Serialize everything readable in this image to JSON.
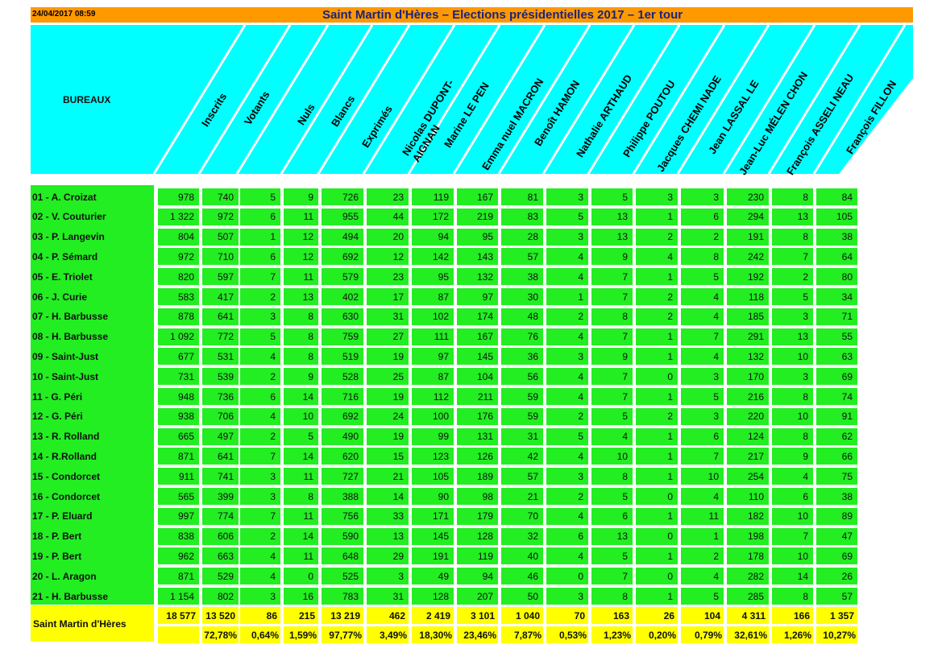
{
  "header": {
    "timestamp": "24/04/2017 08:59",
    "title": "Saint Martin d'Hères – Elections présidentielles 2017 – 1er tour",
    "bureaux_label": "BUREAUX"
  },
  "colors": {
    "orange": "#ff9900",
    "cyan": "#00ffff",
    "green": "#22ee22",
    "yellow": "#ffff00"
  },
  "columns": [
    "Inscrits",
    "Votants",
    "Nuls",
    "Blancs",
    "Exprimés",
    "Nicolas DUPONT-\nAIGNAN",
    "Marine LE PEN",
    "Emma nuel MACRON",
    "Benoît HAMON",
    "Nathalie ARTHAUD",
    "Philippe POUTOU",
    "Jacques CHEMI NADE",
    "Jean LASSAL LE",
    "Jean-Luc MÉLEN CHON",
    "François ASSELI NEAU",
    "François FILLON"
  ],
  "rows": [
    {
      "name": "01 - A. Croizat",
      "values": [
        "978",
        "740",
        "5",
        "9",
        "726",
        "23",
        "119",
        "167",
        "81",
        "3",
        "5",
        "3",
        "3",
        "230",
        "8",
        "84"
      ]
    },
    {
      "name": "02 - V. Couturier",
      "values": [
        "1 322",
        "972",
        "6",
        "11",
        "955",
        "44",
        "172",
        "219",
        "83",
        "5",
        "13",
        "1",
        "6",
        "294",
        "13",
        "105"
      ]
    },
    {
      "name": "03 - P. Langevin",
      "values": [
        "804",
        "507",
        "1",
        "12",
        "494",
        "20",
        "94",
        "95",
        "28",
        "3",
        "13",
        "2",
        "2",
        "191",
        "8",
        "38"
      ]
    },
    {
      "name": "04 - P. Sémard",
      "values": [
        "972",
        "710",
        "6",
        "12",
        "692",
        "12",
        "142",
        "143",
        "57",
        "4",
        "9",
        "4",
        "8",
        "242",
        "7",
        "64"
      ]
    },
    {
      "name": "05 - E. Triolet",
      "values": [
        "820",
        "597",
        "7",
        "11",
        "579",
        "23",
        "95",
        "132",
        "38",
        "4",
        "7",
        "1",
        "5",
        "192",
        "2",
        "80"
      ]
    },
    {
      "name": "06 - J. Curie",
      "values": [
        "583",
        "417",
        "2",
        "13",
        "402",
        "17",
        "87",
        "97",
        "30",
        "1",
        "7",
        "2",
        "4",
        "118",
        "5",
        "34"
      ]
    },
    {
      "name": "07 - H. Barbusse",
      "values": [
        "878",
        "641",
        "3",
        "8",
        "630",
        "31",
        "102",
        "174",
        "48",
        "2",
        "8",
        "2",
        "4",
        "185",
        "3",
        "71"
      ]
    },
    {
      "name": "08 - H. Barbusse",
      "values": [
        "1 092",
        "772",
        "5",
        "8",
        "759",
        "27",
        "111",
        "167",
        "76",
        "4",
        "7",
        "1",
        "7",
        "291",
        "13",
        "55"
      ]
    },
    {
      "name": "09 - Saint-Just",
      "values": [
        "677",
        "531",
        "4",
        "8",
        "519",
        "19",
        "97",
        "145",
        "36",
        "3",
        "9",
        "1",
        "4",
        "132",
        "10",
        "63"
      ]
    },
    {
      "name": "10 - Saint-Just",
      "values": [
        "731",
        "539",
        "2",
        "9",
        "528",
        "25",
        "87",
        "104",
        "56",
        "4",
        "7",
        "0",
        "3",
        "170",
        "3",
        "69"
      ]
    },
    {
      "name": "11 - G. Péri",
      "values": [
        "948",
        "736",
        "6",
        "14",
        "716",
        "19",
        "112",
        "211",
        "59",
        "4",
        "7",
        "1",
        "5",
        "216",
        "8",
        "74"
      ]
    },
    {
      "name": "12 - G. Péri",
      "values": [
        "938",
        "706",
        "4",
        "10",
        "692",
        "24",
        "100",
        "176",
        "59",
        "2",
        "5",
        "2",
        "3",
        "220",
        "10",
        "91"
      ]
    },
    {
      "name": "13 - R. Rolland",
      "values": [
        "665",
        "497",
        "2",
        "5",
        "490",
        "19",
        "99",
        "131",
        "31",
        "5",
        "4",
        "1",
        "6",
        "124",
        "8",
        "62"
      ]
    },
    {
      "name": "14 - R.Rolland",
      "values": [
        "871",
        "641",
        "7",
        "14",
        "620",
        "15",
        "123",
        "126",
        "42",
        "4",
        "10",
        "1",
        "7",
        "217",
        "9",
        "66"
      ]
    },
    {
      "name": "15 - Condorcet",
      "values": [
        "911",
        "741",
        "3",
        "11",
        "727",
        "21",
        "105",
        "189",
        "57",
        "3",
        "8",
        "1",
        "10",
        "254",
        "4",
        "75"
      ]
    },
    {
      "name": "16 - Condorcet",
      "values": [
        "565",
        "399",
        "3",
        "8",
        "388",
        "14",
        "90",
        "98",
        "21",
        "2",
        "5",
        "0",
        "4",
        "110",
        "6",
        "38"
      ]
    },
    {
      "name": "17 - P. Eluard",
      "values": [
        "997",
        "774",
        "7",
        "11",
        "756",
        "33",
        "171",
        "179",
        "70",
        "4",
        "6",
        "1",
        "11",
        "182",
        "10",
        "89"
      ]
    },
    {
      "name": "18 - P. Bert",
      "values": [
        "838",
        "606",
        "2",
        "14",
        "590",
        "13",
        "145",
        "128",
        "32",
        "6",
        "13",
        "0",
        "1",
        "198",
        "7",
        "47"
      ]
    },
    {
      "name": "19 - P. Bert",
      "values": [
        "962",
        "663",
        "4",
        "11",
        "648",
        "29",
        "191",
        "119",
        "40",
        "4",
        "5",
        "1",
        "2",
        "178",
        "10",
        "69"
      ]
    },
    {
      "name": "20 - L. Aragon",
      "values": [
        "871",
        "529",
        "4",
        "0",
        "525",
        "3",
        "49",
        "94",
        "46",
        "0",
        "7",
        "0",
        "4",
        "282",
        "14",
        "26"
      ]
    },
    {
      "name": "21 - H. Barbusse",
      "values": [
        "1 154",
        "802",
        "3",
        "16",
        "783",
        "31",
        "128",
        "207",
        "50",
        "3",
        "8",
        "1",
        "5",
        "285",
        "8",
        "57"
      ]
    }
  ],
  "totals": {
    "name": "Saint Martin d'Hères",
    "values": [
      "18 577",
      "13 520",
      "86",
      "215",
      "13 219",
      "462",
      "2 419",
      "3 101",
      "1 040",
      "70",
      "163",
      "26",
      "104",
      "4 311",
      "166",
      "1 357"
    ],
    "percents": [
      "",
      "72,78%",
      "0,64%",
      "1,59%",
      "97,77%",
      "3,49%",
      "18,30%",
      "23,46%",
      "7,87%",
      "0,53%",
      "1,23%",
      "0,20%",
      "0,79%",
      "32,61%",
      "1,26%",
      "10,27%"
    ]
  }
}
